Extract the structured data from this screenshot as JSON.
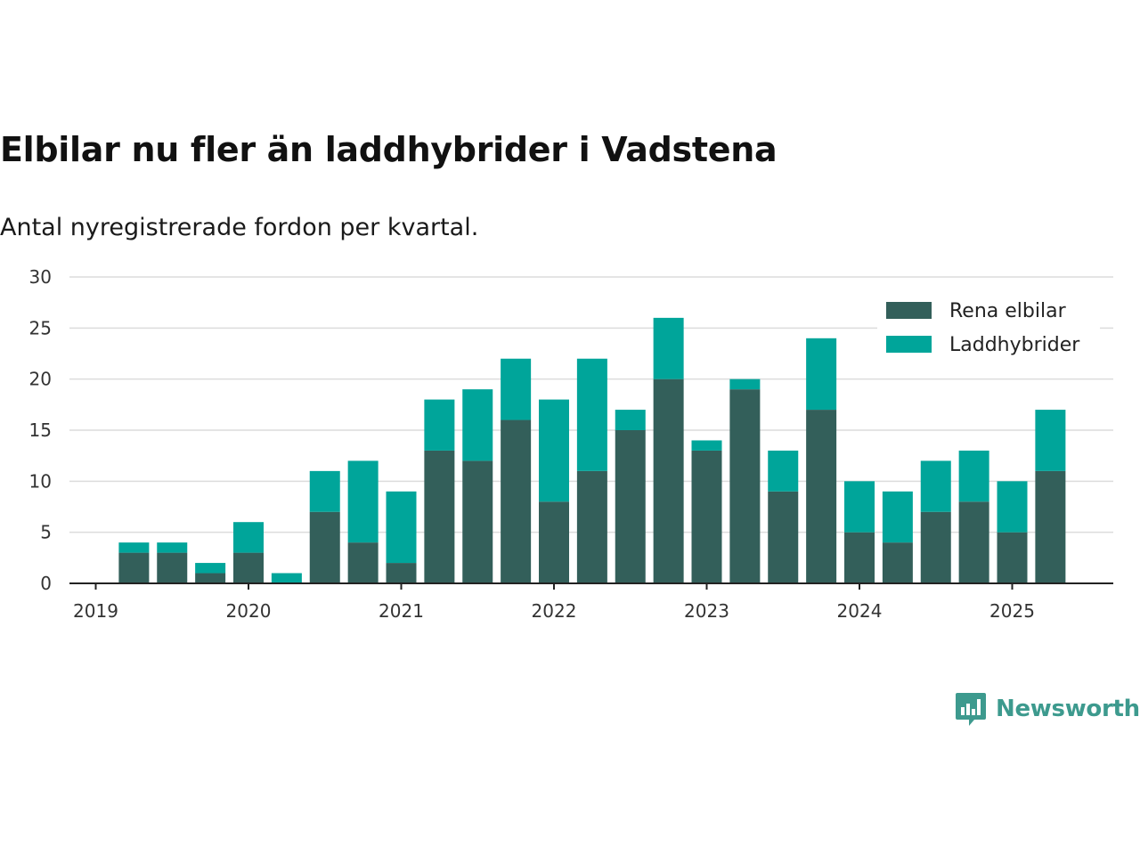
{
  "title": "Elbilar nu fler än laddhybrider i Vadstena",
  "subtitle": "Antal nyregistrerade fordon per kvartal.",
  "brand": {
    "name": "Newsworthy",
    "icon": "bar-chart-speech-bubble-icon",
    "color": "#3d9a8e"
  },
  "colors": {
    "Rena elbilar": "#335f5a",
    "Laddhybrider": "#00a59a"
  },
  "chart_data": {
    "type": "bar",
    "stacked": true,
    "title": "Elbilar nu fler än laddhybrider i Vadstena",
    "subtitle": "Antal nyregistrerade fordon per kvartal.",
    "xlabel": "",
    "ylabel": "",
    "ylim": [
      0,
      30
    ],
    "yticks": [
      0,
      5,
      10,
      15,
      20,
      25,
      30
    ],
    "xticks": [
      "2019",
      "2020",
      "2021",
      "2022",
      "2023",
      "2024",
      "2025"
    ],
    "grid": true,
    "legend_position": "top-right",
    "categories": [
      "2019 Q2",
      "2019 Q3",
      "2019 Q4",
      "2020 Q1",
      "2020 Q2",
      "2020 Q3",
      "2020 Q4",
      "2021 Q1",
      "2021 Q2",
      "2021 Q3",
      "2021 Q4",
      "2022 Q1",
      "2022 Q2",
      "2022 Q3",
      "2022 Q4",
      "2023 Q1",
      "2023 Q2",
      "2023 Q3",
      "2023 Q4",
      "2024 Q1",
      "2024 Q2",
      "2024 Q3",
      "2024 Q4",
      "2025 Q1",
      "2025 Q2"
    ],
    "series": [
      {
        "name": "Rena elbilar",
        "color": "#335f5a",
        "values": [
          3,
          3,
          1,
          3,
          0,
          7,
          4,
          2,
          13,
          12,
          16,
          8,
          11,
          15,
          20,
          13,
          19,
          9,
          17,
          5,
          4,
          7,
          8,
          5,
          11
        ]
      },
      {
        "name": "Laddhybrider",
        "color": "#00a59a",
        "values": [
          1,
          1,
          1,
          3,
          1,
          4,
          8,
          7,
          5,
          7,
          6,
          10,
          11,
          2,
          6,
          1,
          1,
          4,
          7,
          5,
          5,
          5,
          5,
          5,
          6
        ]
      }
    ]
  }
}
